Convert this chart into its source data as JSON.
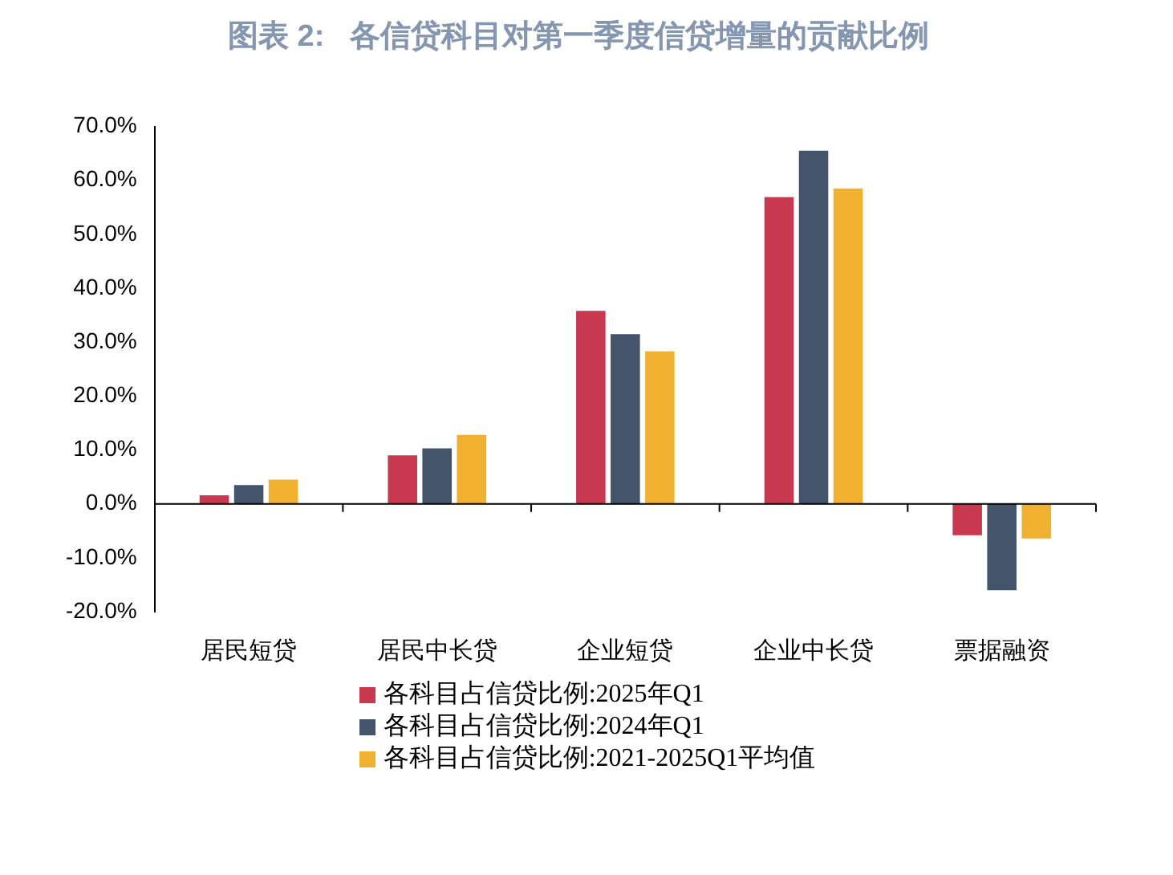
{
  "chart_data": {
    "type": "bar",
    "title": "图表 2:   各信贷科目对第一季度信贷增量的贡献比例",
    "categories": [
      "居民短贷",
      "居民中长贷",
      "企业短贷",
      "企业中长贷",
      "票据融资"
    ],
    "series": [
      {
        "name": "各科目占信贷比例:2025年Q1",
        "color": "#c8384f",
        "values": [
          1.6,
          9.0,
          35.8,
          56.9,
          -5.8
        ]
      },
      {
        "name": "各科目占信贷比例:2024年Q1",
        "color": "#44546a",
        "values": [
          3.5,
          10.3,
          31.5,
          65.5,
          -16.0
        ]
      },
      {
        "name": "各科目占信贷比例:2021-2025Q1平均值",
        "color": "#f0b030",
        "values": [
          4.5,
          12.8,
          28.3,
          58.5,
          -6.4
        ]
      }
    ],
    "ylim": [
      -20,
      70
    ],
    "yticks": [
      {
        "value": -20,
        "label": "-20.0%"
      },
      {
        "value": -10,
        "label": "-10.0%"
      },
      {
        "value": 0,
        "label": "0.0%"
      },
      {
        "value": 10,
        "label": "10.0%"
      },
      {
        "value": 20,
        "label": "20.0%"
      },
      {
        "value": 30,
        "label": "30.0%"
      },
      {
        "value": 40,
        "label": "40.0%"
      },
      {
        "value": 50,
        "label": "50.0%"
      },
      {
        "value": 60,
        "label": "60.0%"
      },
      {
        "value": 70,
        "label": "70.0%"
      }
    ],
    "grid": false,
    "ref_lines": [
      {
        "axis": "y",
        "value": 0,
        "color": "#000000"
      }
    ],
    "legend": "bottom"
  }
}
